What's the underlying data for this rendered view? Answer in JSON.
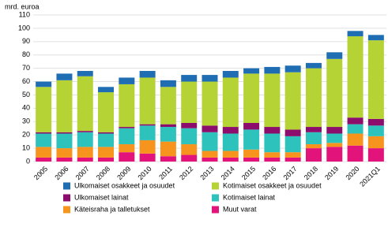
{
  "chart_data": {
    "type": "stacked_bar",
    "y_label": "mrd. euroa",
    "categories": [
      "2005",
      "2006",
      "2007",
      "2008",
      "2009",
      "2010",
      "2011",
      "2012",
      "2013",
      "2014",
      "2015",
      "2016",
      "2017",
      "2018",
      "2019",
      "2020",
      "2021Q1"
    ],
    "series": [
      {
        "name": "Ulkomaiset osakkeet ja osuudet",
        "color": "#1f6db3",
        "values": [
          4,
          5,
          4,
          4,
          5,
          5,
          5,
          5,
          5,
          5,
          4,
          5,
          5,
          4,
          5,
          4,
          4
        ]
      },
      {
        "name": "Kotimaiset osakkeet ja osuudet",
        "color": "#b5d334",
        "values": [
          34,
          39,
          41,
          30,
          32,
          35,
          28,
          31,
          33,
          37,
          37,
          40,
          43,
          44,
          51,
          61,
          59
        ]
      },
      {
        "name": "Ulkomaiset lainat",
        "color": "#8c0d6c",
        "values": [
          1,
          1,
          1,
          1,
          1,
          1,
          2,
          4,
          5,
          5,
          5,
          5,
          5,
          4,
          5,
          5,
          5
        ]
      },
      {
        "name": "Kotimaiset lainat",
        "color": "#2ec2bd",
        "values": [
          10,
          11,
          11,
          10,
          12,
          11,
          11,
          12,
          14,
          13,
          15,
          14,
          12,
          9,
          7,
          7,
          8
        ]
      },
      {
        "name": "Käteisraha ja talletukset",
        "color": "#f7941d",
        "values": [
          8,
          7,
          8,
          8,
          6,
          10,
          11,
          8,
          5,
          5,
          6,
          4,
          4,
          3,
          3,
          9,
          9
        ]
      },
      {
        "name": "Muut varat",
        "color": "#e2137a",
        "values": [
          3,
          3,
          3,
          3,
          7,
          6,
          4,
          5,
          3,
          3,
          3,
          3,
          3,
          10,
          11,
          12,
          10
        ]
      }
    ],
    "ylim": [
      0,
      110
    ],
    "yticks": [
      0,
      10,
      20,
      30,
      40,
      50,
      60,
      70,
      80,
      90,
      100,
      110
    ],
    "grid": true
  }
}
